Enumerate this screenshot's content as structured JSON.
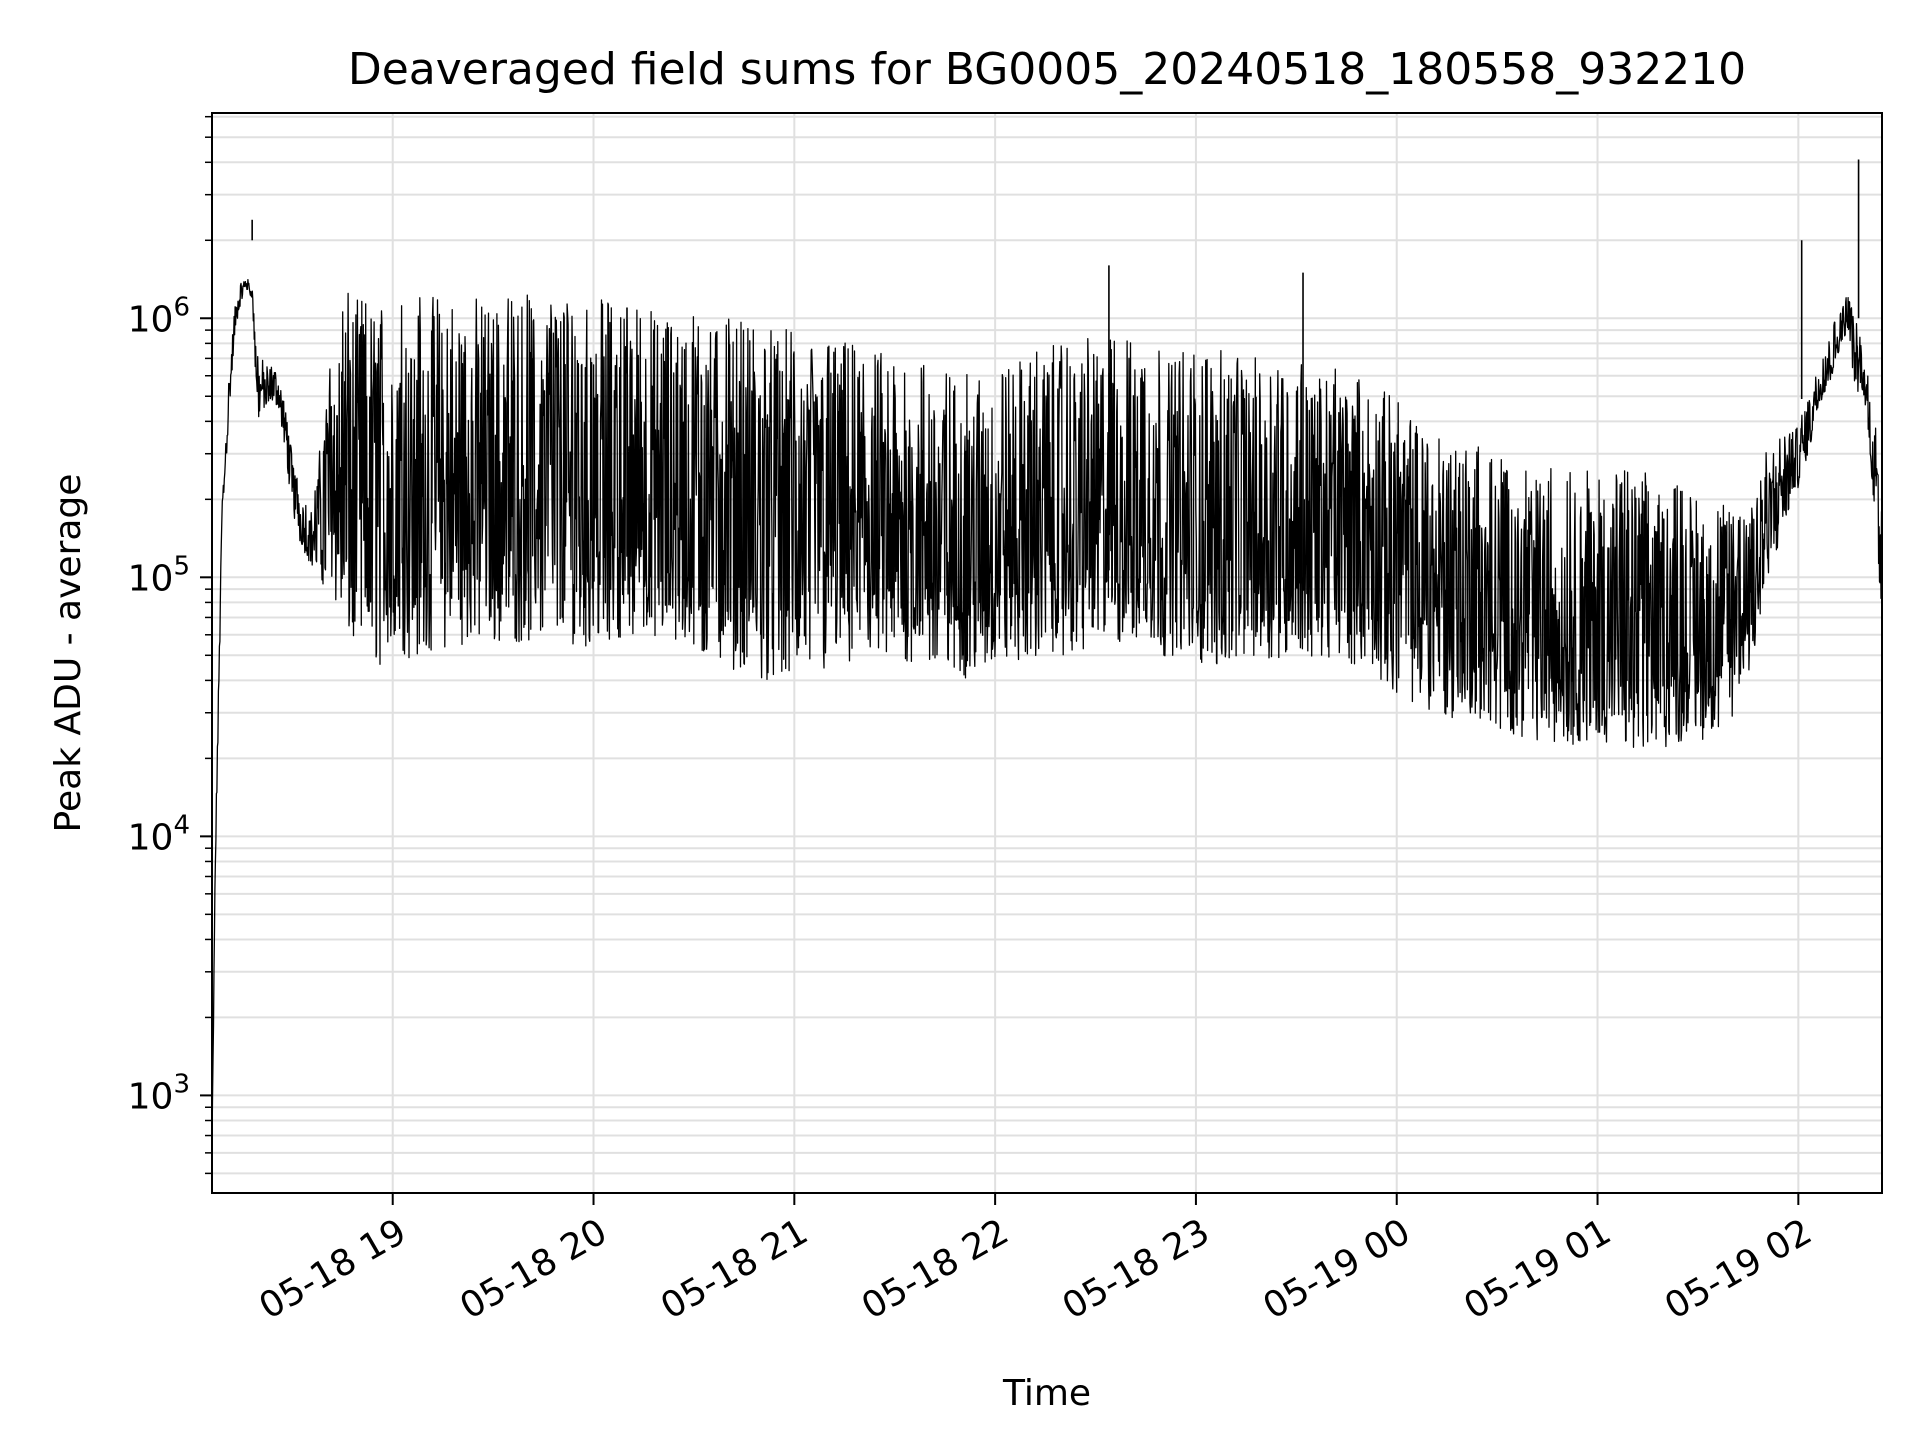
{
  "chart_data": {
    "type": "line",
    "title": "Deaveraged field sums for BG0005_20240518_180558_932210",
    "xlabel": "Time",
    "ylabel": "Peak ADU - average",
    "x_tick_labels": [
      "05-18 19",
      "05-18 20",
      "05-18 21",
      "05-18 22",
      "05-18 23",
      "05-19 00",
      "05-19 01",
      "05-19 02"
    ],
    "x_ticks": [
      "2024-05-18 19:00",
      "2024-05-18 20:00",
      "2024-05-18 21:00",
      "2024-05-18 22:00",
      "2024-05-18 23:00",
      "2024-05-19 00:00",
      "2024-05-19 01:00",
      "2024-05-19 02:00"
    ],
    "y_tick_labels": [
      {
        "base": "10",
        "exp": "3"
      },
      {
        "base": "10",
        "exp": "4"
      },
      {
        "base": "10",
        "exp": "5"
      },
      {
        "base": "10",
        "exp": "6"
      }
    ],
    "y_ticks": [
      1000,
      10000,
      100000,
      1000000
    ],
    "xlim": [
      "2024-05-18 18:06",
      "2024-05-19 02:25"
    ],
    "ylim": [
      420,
      6200000
    ],
    "yscale": "log",
    "grid": true,
    "line_color": "#000000",
    "grid_color": "#e0e0e0",
    "series": [
      {
        "x": [
          "2024-05-18 18:06",
          "2024-05-18 18:07",
          "2024-05-18 18:09",
          "2024-05-18 18:11",
          "2024-05-18 18:13",
          "2024-05-18 18:15",
          "2024-05-18 18:16",
          "2024-05-18 18:18",
          "2024-05-18 18:19",
          "2024-05-18 18:20",
          "2024-05-18 18:21",
          "2024-05-18 18:22",
          "2024-05-18 18:24",
          "2024-05-18 18:26",
          "2024-05-18 18:28",
          "2024-05-18 18:30",
          "2024-05-18 18:32",
          "2024-05-18 18:34",
          "2024-05-18 18:36",
          "2024-05-18 18:38",
          "2024-05-18 18:40",
          "2024-05-18 18:42",
          "2024-05-18 18:44",
          "2024-05-18 18:46",
          "2024-05-18 18:48",
          "2024-05-18 18:50",
          "2024-05-18 18:53",
          "2024-05-18 18:56",
          "2024-05-18 19:00",
          "2024-05-18 19:05",
          "2024-05-18 19:10",
          "2024-05-18 19:15",
          "2024-05-18 19:20",
          "2024-05-18 19:30",
          "2024-05-18 19:40",
          "2024-05-18 19:50",
          "2024-05-18 20:00",
          "2024-05-18 20:10",
          "2024-05-18 20:20",
          "2024-05-18 20:30",
          "2024-05-18 20:40",
          "2024-05-18 20:50",
          "2024-05-18 21:00",
          "2024-05-18 21:10",
          "2024-05-18 21:20",
          "2024-05-18 21:30",
          "2024-05-18 21:40",
          "2024-05-18 21:50",
          "2024-05-18 22:00",
          "2024-05-18 22:10",
          "2024-05-18 22:20",
          "2024-05-18 22:30",
          "2024-05-18 22:40",
          "2024-05-18 22:50",
          "2024-05-18 23:00",
          "2024-05-18 23:10",
          "2024-05-18 23:20",
          "2024-05-18 23:30",
          "2024-05-18 23:40",
          "2024-05-18 23:50",
          "2024-05-19 00:00",
          "2024-05-19 00:10",
          "2024-05-19 00:20",
          "2024-05-19 00:30",
          "2024-05-19 00:40",
          "2024-05-19 00:50",
          "2024-05-19 01:00",
          "2024-05-19 01:10",
          "2024-05-19 01:20",
          "2024-05-19 01:30",
          "2024-05-19 01:35",
          "2024-05-19 01:40",
          "2024-05-19 01:45",
          "2024-05-19 01:50",
          "2024-05-19 01:55",
          "2024-05-19 02:00",
          "2024-05-19 02:03",
          "2024-05-19 02:06",
          "2024-05-19 02:09",
          "2024-05-19 02:11",
          "2024-05-19 02:13",
          "2024-05-19 02:15",
          "2024-05-19 02:17",
          "2024-05-19 02:19",
          "2024-05-19 02:21",
          "2024-05-19 02:23",
          "2024-05-19 02:25"
        ],
        "low": [
          600,
          7000,
          150000,
          400000,
          900000,
          1200000,
          1300000,
          1200000,
          600000,
          400000,
          450000,
          420000,
          480000,
          450000,
          300000,
          180000,
          140000,
          120000,
          110000,
          100000,
          90000,
          80000,
          70000,
          60000,
          55000,
          50000,
          48000,
          45000,
          48000,
          48000,
          50000,
          52000,
          55000,
          55000,
          56000,
          55000,
          54000,
          60000,
          55000,
          50000,
          45000,
          40000,
          40000,
          42000,
          44000,
          45000,
          46000,
          40000,
          44000,
          48000,
          50000,
          52000,
          55000,
          50000,
          46000,
          45000,
          48000,
          50000,
          47000,
          46000,
          35000,
          30000,
          28000,
          25000,
          24000,
          22000,
          22000,
          22000,
          22000,
          23000,
          25000,
          28000,
          40000,
          80000,
          150000,
          220000,
          300000,
          450000,
          550000,
          650000,
          800000,
          900000,
          500000,
          500000,
          350000,
          150000,
          70000
        ],
        "high": [
          700,
          9000,
          200000,
          600000,
          1200000,
          1400000,
          1500000,
          1300000,
          900000,
          700000,
          700000,
          650000,
          650000,
          600000,
          450000,
          300000,
          230000,
          200000,
          180000,
          300000,
          500000,
          900000,
          1200000,
          1250000,
          1250000,
          1200000,
          1250000,
          1250000,
          1250000,
          1250000,
          1250000,
          1250000,
          1250000,
          1250000,
          1250000,
          1250000,
          1200000,
          1150000,
          1100000,
          1050000,
          1000000,
          950000,
          900000,
          850000,
          800000,
          750000,
          700000,
          600000,
          650000,
          750000,
          800000,
          850000,
          850000,
          800000,
          750000,
          750000,
          700000,
          700000,
          650000,
          600000,
          500000,
          400000,
          350000,
          300000,
          280000,
          260000,
          260000,
          260000,
          250000,
          200000,
          180000,
          200000,
          250000,
          300000,
          350000,
          400000,
          500000,
          700000,
          900000,
          1000000,
          1100000,
          1300000,
          1000000,
          800000,
          600000,
          400000,
          200000
        ],
        "spikes": [
          {
            "x": "2024-05-18 18:18",
            "y": 2000000
          },
          {
            "x": "2024-05-18 20:10",
            "y": 1100000
          },
          {
            "x": "2024-05-18 22:34",
            "y": 1600000
          },
          {
            "x": "2024-05-18 23:32",
            "y": 1500000
          },
          {
            "x": "2024-05-19 02:01",
            "y": 2000000
          },
          {
            "x": "2024-05-19 02:18",
            "y": 4100000
          }
        ]
      }
    ]
  }
}
